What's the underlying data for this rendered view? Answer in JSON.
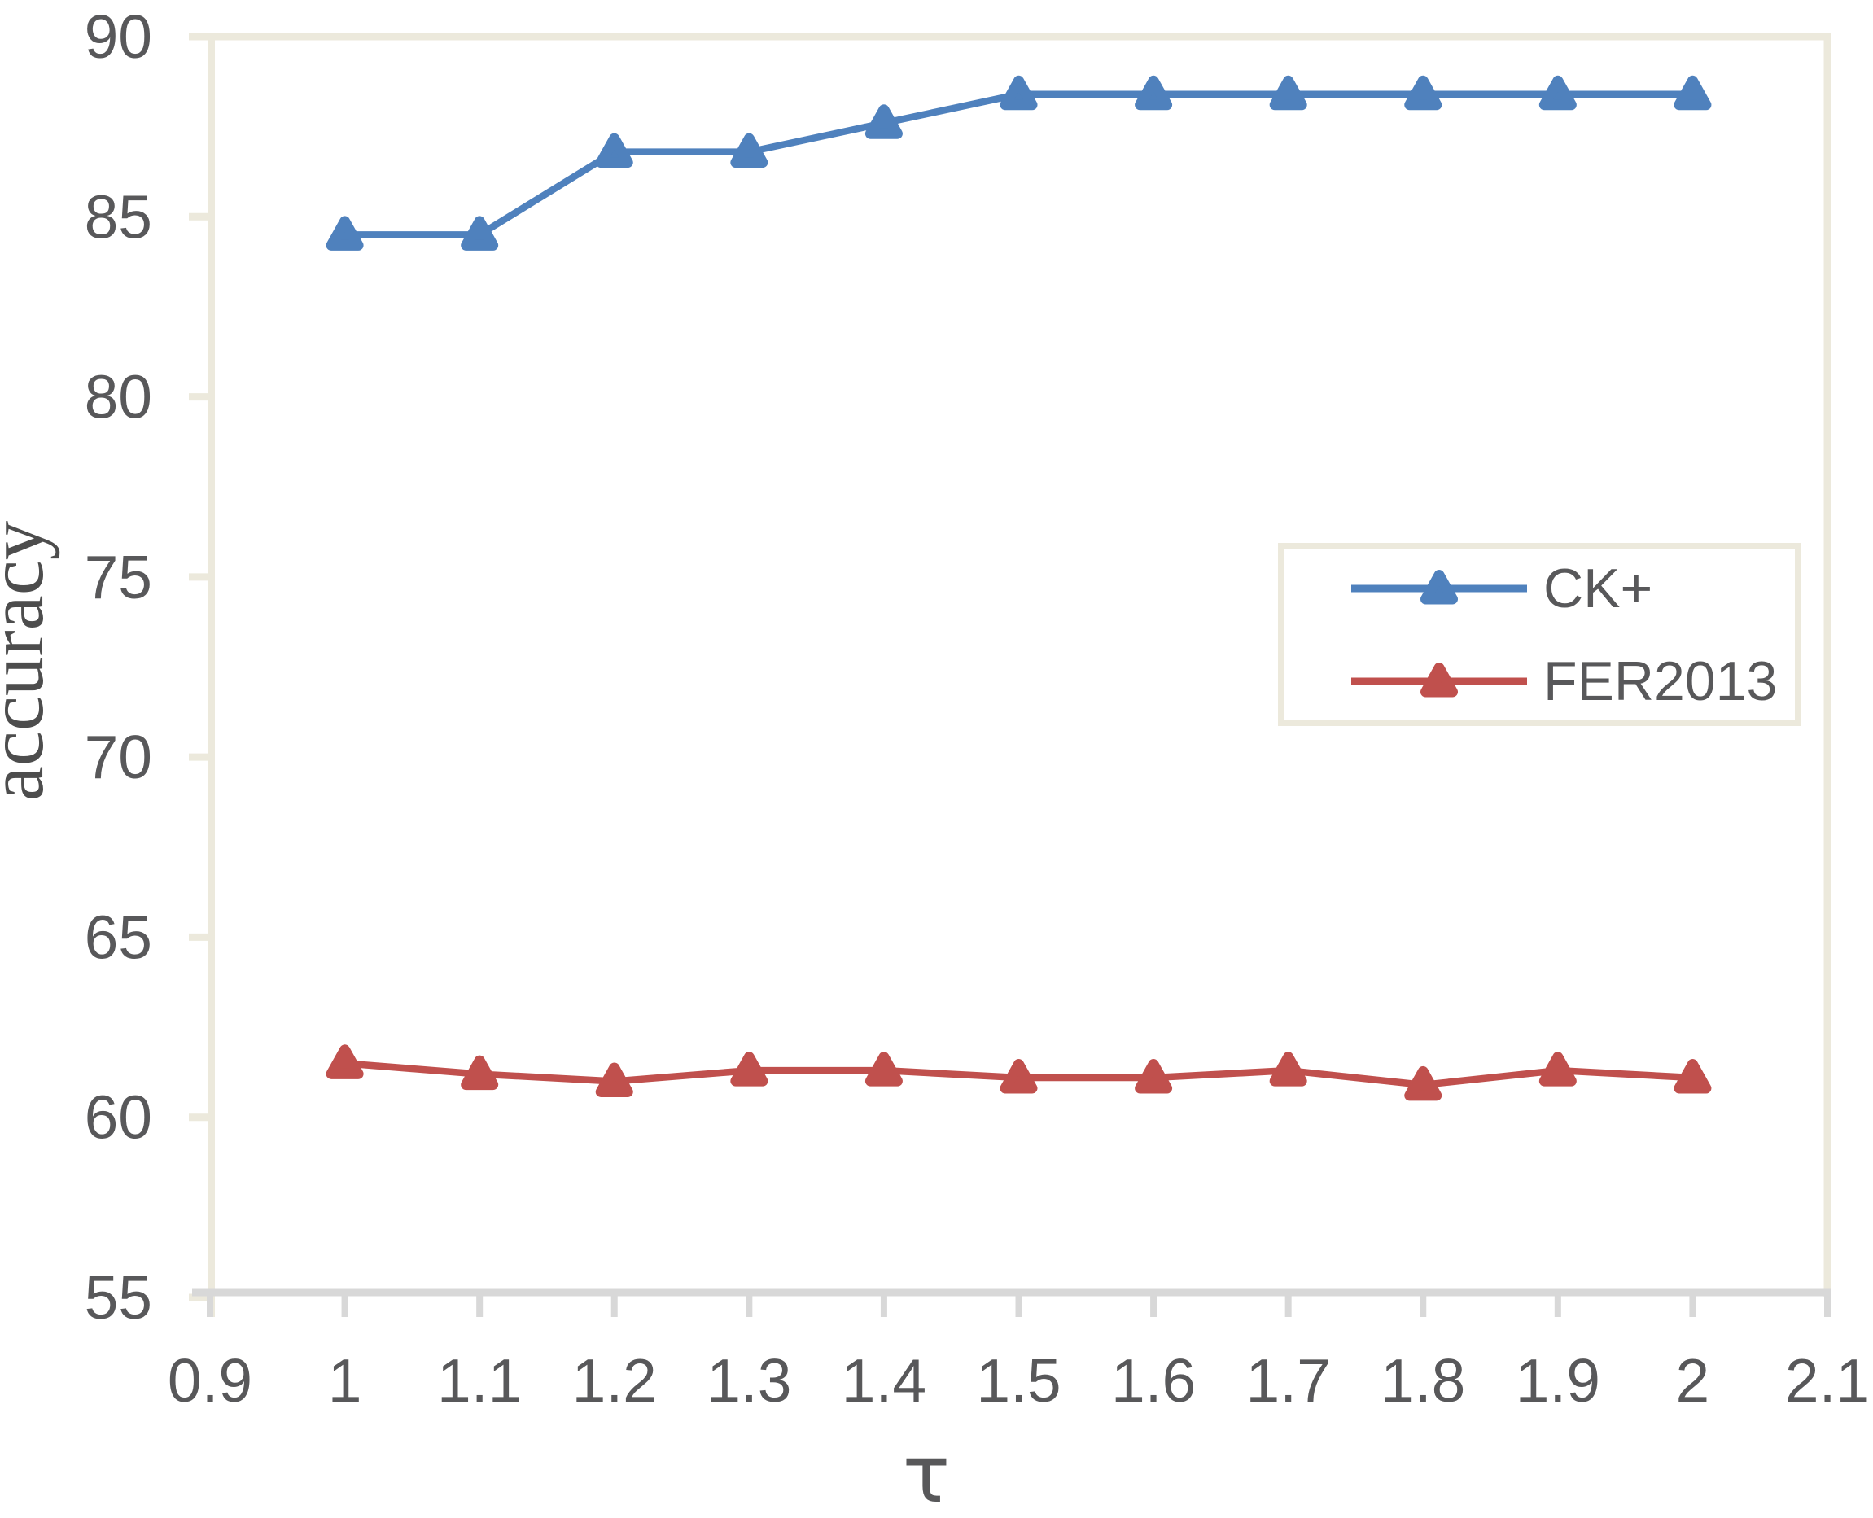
{
  "figure": {
    "kind": "scientific-line-plot",
    "background": "#ffffff"
  },
  "chart_data": {
    "type": "line",
    "title": "",
    "xlabel": "τ",
    "ylabel": "accuracy",
    "xlim": [
      0.9,
      2.1
    ],
    "ylim": [
      55,
      90
    ],
    "grid": false,
    "x": [
      1,
      1.1,
      1.2,
      1.3,
      1.4,
      1.5,
      1.6,
      1.7,
      1.8,
      1.9,
      2
    ],
    "x_ticks": {
      "values": [
        0.9,
        1,
        1.1,
        1.2,
        1.3,
        1.4,
        1.5,
        1.6,
        1.7,
        1.8,
        1.9,
        2,
        2.1
      ],
      "labels": [
        "0.9",
        "1",
        "1.1",
        "1.2",
        "1.3",
        "1.4",
        "1.5",
        "1.6",
        "1.7",
        "1.8",
        "1.9",
        "2",
        "2.1"
      ]
    },
    "y_ticks": {
      "values": [
        55,
        60,
        65,
        70,
        75,
        80,
        85,
        90
      ],
      "labels": [
        "55",
        "60",
        "65",
        "70",
        "75",
        "80",
        "85",
        "90"
      ]
    },
    "series": [
      {
        "name": "CK+",
        "color": "#4f81bd",
        "marker": "triangle-up",
        "values": [
          84.5,
          84.5,
          86.8,
          86.8,
          87.6,
          88.4,
          88.4,
          88.4,
          88.4,
          88.4,
          88.4
        ]
      },
      {
        "name": "FER2013",
        "color": "#c0504d",
        "marker": "triangle-up",
        "values": [
          61.5,
          61.2,
          61.0,
          61.3,
          61.3,
          61.1,
          61.1,
          61.3,
          60.9,
          61.3,
          61.1
        ]
      }
    ],
    "legend": {
      "position": "center-right",
      "entries": [
        "CK+",
        "FER2013"
      ]
    },
    "colors": {
      "plot_border": "#ece9dc",
      "x_axis_line": "#d8d8d8",
      "tick_label": "#58585a",
      "axis_label": "#4d4d4d",
      "legend_border": "#ece9dc",
      "legend_bg": "#ffffff",
      "background": "#ffffff"
    }
  }
}
